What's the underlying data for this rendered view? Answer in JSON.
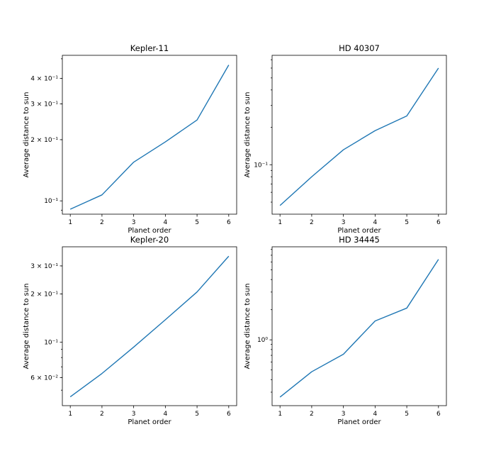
{
  "chart_data": [
    {
      "type": "line",
      "title": "Kepler-11",
      "xlabel": "Planet order",
      "ylabel": "Average distance to sun",
      "yscale": "log",
      "x": [
        1,
        2,
        3,
        4,
        5,
        6
      ],
      "values": [
        0.091,
        0.107,
        0.155,
        0.195,
        0.25,
        0.466
      ],
      "xticks": [
        "1",
        "2",
        "3",
        "4",
        "5",
        "6"
      ],
      "yticks": [
        {
          "value": 0.1,
          "label": "10⁻¹"
        },
        {
          "value": 0.2,
          "label": "2 × 10⁻¹"
        },
        {
          "value": 0.3,
          "label": "3 × 10⁻¹"
        },
        {
          "value": 0.4,
          "label": "4 × 10⁻¹"
        }
      ],
      "ylim": [
        0.086,
        0.52
      ],
      "xlim": [
        0.75,
        6.25
      ],
      "grid": false
    },
    {
      "type": "line",
      "title": "HD 40307",
      "xlabel": "Planet order",
      "ylabel": "Average distance to sun",
      "yscale": "log",
      "x": [
        1,
        2,
        3,
        4,
        5,
        6
      ],
      "values": [
        0.047,
        0.08,
        0.132,
        0.188,
        0.247,
        0.6
      ],
      "xticks": [
        "1",
        "2",
        "3",
        "4",
        "5",
        "6"
      ],
      "yticks": [
        {
          "value": 0.1,
          "label": "10⁻¹"
        }
      ],
      "ylim": [
        0.04,
        0.76
      ],
      "xlim": [
        0.75,
        6.25
      ],
      "grid": false
    },
    {
      "type": "line",
      "title": "Kepler-20",
      "xlabel": "Planet order",
      "ylabel": "Average distance to sun",
      "yscale": "log",
      "x": [
        1,
        2,
        3,
        4,
        5,
        6
      ],
      "values": [
        0.0454,
        0.0636,
        0.093,
        0.138,
        0.206,
        0.345
      ],
      "xticks": [
        "1",
        "2",
        "3",
        "4",
        "5",
        "6"
      ],
      "yticks": [
        {
          "value": 0.06,
          "label": "6 × 10⁻²"
        },
        {
          "value": 0.1,
          "label": "10⁻¹"
        },
        {
          "value": 0.2,
          "label": "2 × 10⁻¹"
        },
        {
          "value": 0.3,
          "label": "3 × 10⁻¹"
        }
      ],
      "ylim": [
        0.04,
        0.395
      ],
      "xlim": [
        0.75,
        6.25
      ],
      "grid": false
    },
    {
      "type": "line",
      "title": "HD 34445",
      "xlabel": "Planet order",
      "ylabel": "Average distance to sun",
      "yscale": "log",
      "x": [
        1,
        2,
        3,
        4,
        5,
        6
      ],
      "values": [
        0.268,
        0.48,
        0.718,
        1.543,
        2.075,
        6.36
      ],
      "xticks": [
        "1",
        "2",
        "3",
        "4",
        "5",
        "6"
      ],
      "yticks": [
        {
          "value": 1,
          "label": "10⁰"
        }
      ],
      "ylim": [
        0.22,
        8.5
      ],
      "xlim": [
        0.75,
        6.25
      ],
      "grid": false
    }
  ]
}
